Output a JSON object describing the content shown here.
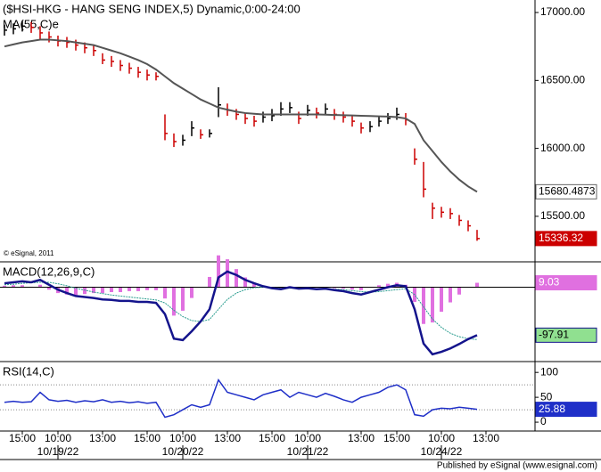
{
  "title": "($HSI-HKG - HANG SENG INDEX,5) Dynamic,0:00-24:00",
  "footer": "Published by eSignal (www.esignal.com)",
  "categories": [
    null,
    null,
    "15:00",
    null,
    null,
    null,
    "10:00",
    null,
    null,
    null,
    null,
    "13:00",
    null,
    null,
    null,
    null,
    "15:00",
    null,
    null,
    null,
    "10:00",
    null,
    null,
    null,
    null,
    "13:00",
    null,
    null,
    null,
    null,
    "15:00",
    null,
    null,
    null,
    "10:00",
    null,
    null,
    null,
    null,
    null,
    "13:00",
    null,
    null,
    null,
    "15:00",
    null,
    null,
    null,
    null,
    "10:00",
    null,
    null,
    null,
    null,
    "13:00"
  ],
  "date_ticks": [
    {
      "value": 6,
      "label": "10/19/22"
    },
    {
      "value": 20,
      "label": "10/20/22"
    },
    {
      "value": 34,
      "label": "10/21/22"
    },
    {
      "value": 49,
      "label": "10/24/22"
    }
  ],
  "chart_data": [
    {
      "type": "ohlc",
      "copyright": "© eSignal, 2011",
      "ylim": [
        15165,
        17092
      ],
      "yticks": [
        {
          "value": 15500,
          "label": "15500.00"
        },
        {
          "value": 16000,
          "label": "16000.00"
        },
        {
          "value": 16500,
          "label": "16500.00"
        },
        {
          "value": 17000,
          "label": "17000.00"
        }
      ],
      "up_color": "#000000",
      "down_color": "#cc0000",
      "high": [
        16910,
        16920,
        16940,
        16930,
        16900,
        16860,
        16830,
        16820,
        16800,
        16780,
        16760,
        16700,
        16680,
        16650,
        16630,
        16600,
        16580,
        16560,
        16250,
        16110,
        16100,
        16200,
        16140,
        16140,
        16450,
        16330,
        16290,
        16260,
        16240,
        16270,
        16290,
        16340,
        16340,
        16270,
        16320,
        16300,
        16330,
        16290,
        16270,
        16240,
        16190,
        16200,
        16240,
        16260,
        16300,
        16260,
        16000,
        15900,
        15600,
        15570,
        15560,
        15510,
        15470,
        15400,
        null
      ],
      "low": [
        16830,
        16840,
        16860,
        16850,
        16800,
        16780,
        16750,
        16740,
        16720,
        16700,
        16680,
        16620,
        16600,
        16570,
        16550,
        16520,
        16500,
        16500,
        16060,
        16010,
        16020,
        16090,
        16070,
        16080,
        16230,
        16240,
        16210,
        16180,
        16160,
        16190,
        16200,
        16240,
        16260,
        16180,
        16240,
        16220,
        16250,
        16210,
        16190,
        16160,
        16110,
        16120,
        16160,
        16180,
        16210,
        16170,
        15880,
        15640,
        15480,
        15490,
        15480,
        15430,
        15390,
        15320,
        null
      ],
      "close": [
        16870,
        16880,
        16900,
        16890,
        16850,
        16820,
        16790,
        16780,
        16760,
        16740,
        16720,
        16650,
        16640,
        16610,
        16590,
        16560,
        16540,
        16530,
        16110,
        16050,
        16060,
        16150,
        16100,
        16110,
        16320,
        16280,
        16250,
        16220,
        16200,
        16230,
        16240,
        16290,
        16300,
        16220,
        16280,
        16260,
        16290,
        16250,
        16230,
        16200,
        16150,
        16160,
        16200,
        16220,
        16250,
        16210,
        15920,
        15700,
        15560,
        15530,
        15520,
        15470,
        15430,
        15336.32,
        null
      ],
      "series": [
        {
          "name": "MA(55,C)e",
          "color": "#555555",
          "values": [
            16750,
            16765,
            16780,
            16790,
            16800,
            16800,
            16795,
            16790,
            16780,
            16770,
            16760,
            16740,
            16720,
            16700,
            16675,
            16650,
            16620,
            16580,
            16530,
            16480,
            16440,
            16400,
            16360,
            16330,
            16300,
            16285,
            16270,
            16260,
            16255,
            16250,
            16250,
            16250,
            16250,
            16250,
            16250,
            16250,
            16248,
            16246,
            16244,
            16242,
            16240,
            16238,
            16236,
            16234,
            16230,
            16220,
            16180,
            16060,
            15980,
            15900,
            15830,
            15770,
            15720,
            15680.4873,
            null
          ]
        }
      ]
    },
    {
      "type": "macd",
      "title": "MACD(12,26,9,C)",
      "ylim": [
        -150,
        50
      ],
      "series": [
        {
          "name": "macd",
          "color": "#14148c",
          "values": [
            8,
            10,
            12,
            10,
            15,
            5,
            -5,
            -12,
            -18,
            -20,
            -22,
            -25,
            -26,
            -28,
            -28,
            -30,
            -30,
            -32,
            -55,
            -105,
            -108,
            -90,
            -70,
            -45,
            20,
            32,
            25,
            15,
            8,
            2,
            -2,
            -4,
            0,
            -3,
            -2,
            -4,
            -3,
            -6,
            -8,
            -12,
            -15,
            -10,
            -5,
            0,
            4,
            2,
            -45,
            -115,
            -137,
            -132,
            -125,
            -116,
            -106,
            -97.91,
            null
          ]
        },
        {
          "name": "signal",
          "color": "#2a9d8f",
          "values": [
            5,
            6,
            8,
            9,
            10,
            10,
            7,
            3,
            -2,
            -6,
            -10,
            -13,
            -16,
            -18,
            -20,
            -22,
            -24,
            -26,
            -32,
            -47,
            -60,
            -68,
            -70,
            -66,
            -45,
            -25,
            -12,
            -5,
            -1,
            0,
            -1,
            -2,
            -2,
            -2,
            -2,
            -3,
            -3,
            -4,
            -5,
            -7,
            -9,
            -10,
            -9,
            -7,
            -5,
            -3,
            -15,
            -40,
            -65,
            -82,
            -94,
            -101,
            -105,
            -106.94,
            null
          ]
        },
        {
          "name": "histogram",
          "color": "#e070e0",
          "values": [
            3,
            4,
            4,
            1,
            5,
            -5,
            -12,
            -15,
            -16,
            -14,
            -12,
            -12,
            -10,
            -10,
            -8,
            -8,
            -6,
            -6,
            -23,
            -58,
            -48,
            -22,
            0,
            21,
            65,
            57,
            37,
            20,
            9,
            2,
            -1,
            -2,
            2,
            -1,
            0,
            -1,
            0,
            -2,
            -3,
            -5,
            -6,
            0,
            4,
            7,
            9,
            5,
            -30,
            -75,
            -72,
            -50,
            -31,
            -15,
            -1,
            9.03,
            null
          ]
        }
      ]
    },
    {
      "type": "line",
      "title": "RSI(14,C)",
      "ylim": [
        -16,
        120
      ],
      "yticks": [
        0,
        50,
        100
      ],
      "guides": [
        25,
        75
      ],
      "series": [
        {
          "name": "rsi",
          "color": "#1f2fc8",
          "values": [
            40,
            42,
            40,
            41,
            60,
            45,
            42,
            44,
            40,
            43,
            41,
            45,
            40,
            42,
            39,
            41,
            38,
            40,
            10,
            15,
            25,
            35,
            30,
            35,
            85,
            60,
            55,
            50,
            45,
            55,
            60,
            65,
            50,
            60,
            55,
            50,
            58,
            52,
            45,
            40,
            50,
            55,
            60,
            70,
            75,
            65,
            15,
            12,
            25,
            28,
            27,
            30,
            28,
            25.88,
            null
          ]
        }
      ]
    }
  ]
}
